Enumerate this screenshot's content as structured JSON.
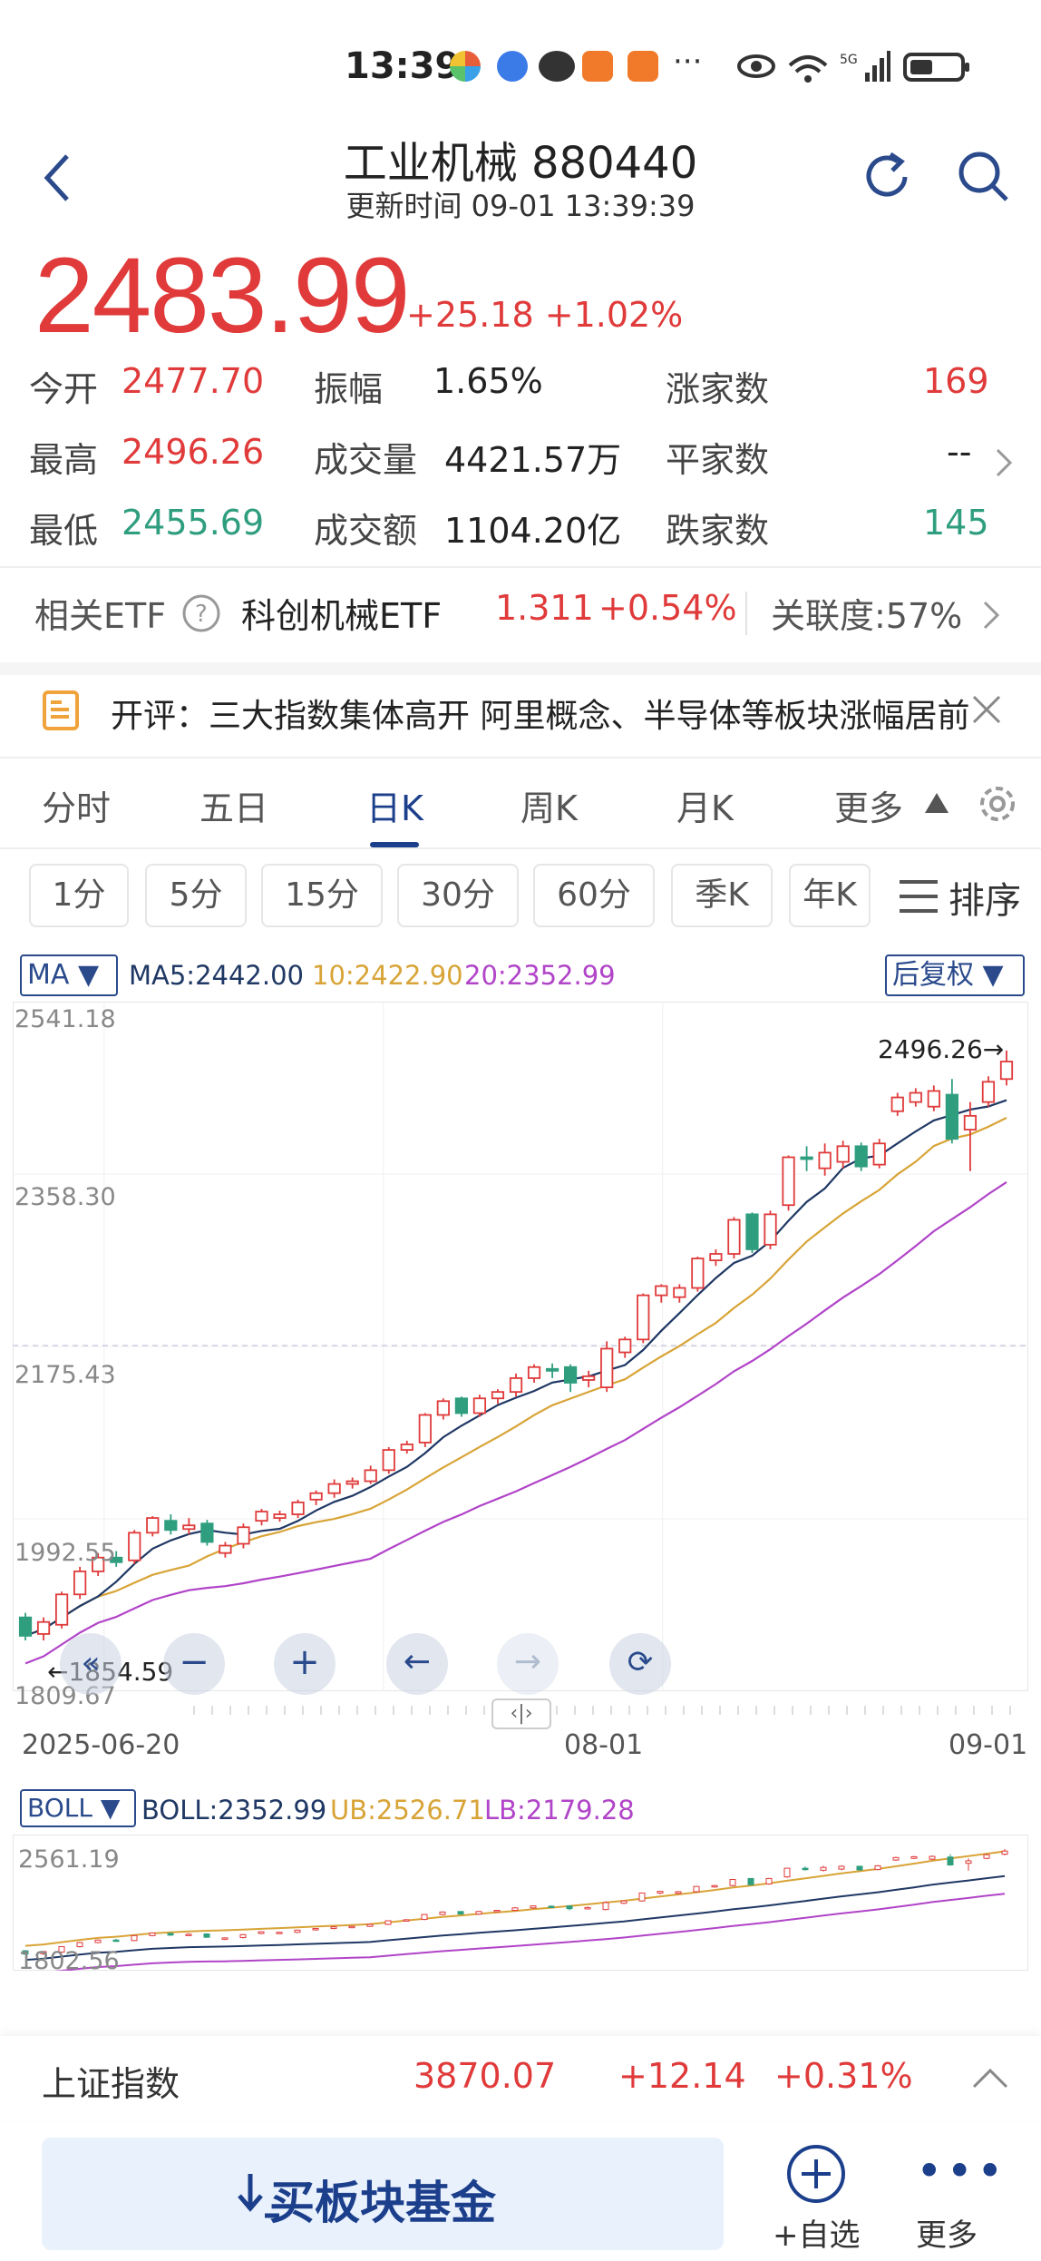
{
  "status_bar": {
    "time": "13:39"
  },
  "header": {
    "title": "工业机械 880440",
    "subtitle": "更新时间 09-01 13:39:39"
  },
  "quote": {
    "price": "2483.99",
    "change": "+25.18",
    "change_pct": "+1.02%"
  },
  "stats": {
    "open_label": "今开",
    "open": "2477.70",
    "high_label": "最高",
    "high": "2496.26",
    "low_label": "最低",
    "low": "2455.69",
    "amplitude_label": "振幅",
    "amplitude": "1.65%",
    "volume_label": "成交量",
    "volume": "4421.57万",
    "turnover_label": "成交额",
    "turnover": "1104.20亿",
    "up_label": "涨家数",
    "up": "169",
    "flat_label": "平家数",
    "flat": "--",
    "down_label": "跌家数",
    "down": "145"
  },
  "etf": {
    "label": "相关ETF",
    "name": "科创机械ETF",
    "price": "1.311",
    "change": "+0.54%",
    "correlation": "关联度:57%"
  },
  "news": {
    "text": "开评：三大指数集体高开 阿里概念、半导体等板块涨幅居前"
  },
  "tabs": [
    "分时",
    "五日",
    "日K",
    "周K",
    "月K",
    "更多"
  ],
  "periods": [
    "1分",
    "5分",
    "15分",
    "30分",
    "60分",
    "季K",
    "年K"
  ],
  "sort_label": "排序",
  "ma": {
    "selector": "MA",
    "ma5": "MA5:2442.00",
    "ma10": "10:2422.90",
    "ma20": "20:2352.99",
    "adjust": "后复权",
    "colors": {
      "ma5": "#1f3864",
      "ma10": "#d8a437",
      "ma20": "#b144c8"
    }
  },
  "kchart": {
    "y_ticks": [
      "2541.18",
      "2358.30",
      "2175.43",
      "1992.55",
      "1809.67"
    ],
    "x_ticks": [
      "2025-06-20",
      "08-01",
      "09-01"
    ],
    "max_label": "2496.26→",
    "min_label": "←1854.59"
  },
  "boll": {
    "selector": "BOLL",
    "mid": "BOLL:2352.99",
    "ub": "UB:2526.71",
    "lb": "LB:2179.28",
    "y_top": "2561.19",
    "y_bottom": "1802.56"
  },
  "ticker": {
    "name": "上证指数",
    "price": "3870.07",
    "change": "+12.14",
    "change_pct": "+0.31%"
  },
  "bottom": {
    "buy_fund": "买板块基金",
    "add_watch": "+自选",
    "more": "更多"
  },
  "chart_data": {
    "type": "candlestick",
    "x_range": [
      "2025-06-20",
      "2025-09-01"
    ],
    "ylim": [
      1809.67,
      2541.18
    ],
    "candles": [
      {
        "o": 1880,
        "c": 1860,
        "h": 1885,
        "l": 1855
      },
      {
        "o": 1862,
        "c": 1875,
        "h": 1880,
        "l": 1855
      },
      {
        "o": 1872,
        "c": 1905,
        "h": 1908,
        "l": 1868
      },
      {
        "o": 1905,
        "c": 1930,
        "h": 1935,
        "l": 1900
      },
      {
        "o": 1930,
        "c": 1945,
        "h": 1950,
        "l": 1925
      },
      {
        "o": 1945,
        "c": 1940,
        "h": 1952,
        "l": 1935
      },
      {
        "o": 1942,
        "c": 1972,
        "h": 1975,
        "l": 1938
      },
      {
        "o": 1972,
        "c": 1988,
        "h": 1990,
        "l": 1968
      },
      {
        "o": 1985,
        "c": 1975,
        "h": 1992,
        "l": 1970
      },
      {
        "o": 1976,
        "c": 1980,
        "h": 1988,
        "l": 1970
      },
      {
        "o": 1982,
        "c": 1962,
        "h": 1986,
        "l": 1958
      },
      {
        "o": 1950,
        "c": 1958,
        "h": 1962,
        "l": 1945
      },
      {
        "o": 1960,
        "c": 1978,
        "h": 1982,
        "l": 1955
      },
      {
        "o": 1985,
        "c": 1995,
        "h": 1998,
        "l": 1980
      },
      {
        "o": 1988,
        "c": 1992,
        "h": 1996,
        "l": 1984
      },
      {
        "o": 1992,
        "c": 2005,
        "h": 2008,
        "l": 1988
      },
      {
        "o": 2008,
        "c": 2015,
        "h": 2018,
        "l": 2002
      },
      {
        "o": 2015,
        "c": 2025,
        "h": 2030,
        "l": 2010
      },
      {
        "o": 2025,
        "c": 2028,
        "h": 2032,
        "l": 2020
      },
      {
        "o": 2028,
        "c": 2040,
        "h": 2045,
        "l": 2025
      },
      {
        "o": 2040,
        "c": 2062,
        "h": 2065,
        "l": 2036
      },
      {
        "o": 2062,
        "c": 2068,
        "h": 2072,
        "l": 2058
      },
      {
        "o": 2070,
        "c": 2100,
        "h": 2102,
        "l": 2065
      },
      {
        "o": 2100,
        "c": 2115,
        "h": 2118,
        "l": 2095
      },
      {
        "o": 2118,
        "c": 2102,
        "h": 2120,
        "l": 2098
      },
      {
        "o": 2102,
        "c": 2118,
        "h": 2122,
        "l": 2098
      },
      {
        "o": 2118,
        "c": 2125,
        "h": 2128,
        "l": 2112
      },
      {
        "o": 2125,
        "c": 2140,
        "h": 2145,
        "l": 2120
      },
      {
        "o": 2140,
        "c": 2152,
        "h": 2155,
        "l": 2135
      },
      {
        "o": 2150,
        "c": 2148,
        "h": 2156,
        "l": 2140
      },
      {
        "o": 2152,
        "c": 2135,
        "h": 2155,
        "l": 2125
      },
      {
        "o": 2138,
        "c": 2142,
        "h": 2148,
        "l": 2130
      },
      {
        "o": 2130,
        "c": 2172,
        "h": 2180,
        "l": 2125
      },
      {
        "o": 2168,
        "c": 2182,
        "h": 2185,
        "l": 2162
      },
      {
        "o": 2182,
        "c": 2230,
        "h": 2232,
        "l": 2178
      },
      {
        "o": 2230,
        "c": 2240,
        "h": 2242,
        "l": 2222
      },
      {
        "o": 2228,
        "c": 2238,
        "h": 2242,
        "l": 2222
      },
      {
        "o": 2238,
        "c": 2270,
        "h": 2272,
        "l": 2234
      },
      {
        "o": 2268,
        "c": 2275,
        "h": 2280,
        "l": 2262
      },
      {
        "o": 2275,
        "c": 2312,
        "h": 2315,
        "l": 2270
      },
      {
        "o": 2318,
        "c": 2280,
        "h": 2320,
        "l": 2276
      },
      {
        "o": 2285,
        "c": 2318,
        "h": 2322,
        "l": 2280
      },
      {
        "o": 2328,
        "c": 2380,
        "h": 2382,
        "l": 2322
      },
      {
        "o": 2380,
        "c": 2378,
        "h": 2392,
        "l": 2365
      },
      {
        "o": 2368,
        "c": 2385,
        "h": 2395,
        "l": 2360
      },
      {
        "o": 2375,
        "c": 2392,
        "h": 2398,
        "l": 2368
      },
      {
        "o": 2392,
        "c": 2370,
        "h": 2396,
        "l": 2365
      },
      {
        "o": 2372,
        "c": 2395,
        "h": 2400,
        "l": 2368
      },
      {
        "o": 2430,
        "c": 2445,
        "h": 2450,
        "l": 2425
      },
      {
        "o": 2440,
        "c": 2450,
        "h": 2455,
        "l": 2435
      },
      {
        "o": 2435,
        "c": 2452,
        "h": 2458,
        "l": 2430
      },
      {
        "o": 2448,
        "c": 2400,
        "h": 2465,
        "l": 2395
      },
      {
        "o": 2410,
        "c": 2425,
        "h": 2440,
        "l": 2365
      },
      {
        "o": 2440,
        "c": 2462,
        "h": 2468,
        "l": 2435
      },
      {
        "o": 2465,
        "c": 2484,
        "h": 2496,
        "l": 2458
      }
    ],
    "ma5_end": 2442.0,
    "ma10_end": 2422.9,
    "ma20_end": 2352.99
  }
}
